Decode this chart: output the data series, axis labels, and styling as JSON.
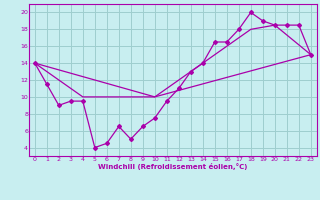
{
  "xlabel": "Windchill (Refroidissement éolien,°C)",
  "xlim": [
    -0.5,
    23.5
  ],
  "ylim": [
    3.0,
    21.0
  ],
  "xticks": [
    0,
    1,
    2,
    3,
    4,
    5,
    6,
    7,
    8,
    9,
    10,
    11,
    12,
    13,
    14,
    15,
    16,
    17,
    18,
    19,
    20,
    21,
    22,
    23
  ],
  "yticks": [
    4,
    6,
    8,
    10,
    12,
    14,
    16,
    18,
    20
  ],
  "background_color": "#c8eef0",
  "line_color": "#aa00aa",
  "grid_color": "#9ecece",
  "series1_x": [
    0,
    1,
    2,
    3,
    4,
    5,
    6,
    7,
    8,
    9,
    10,
    11,
    12,
    13,
    14,
    15,
    16,
    17,
    18,
    19,
    20,
    21,
    22,
    23
  ],
  "series1_y": [
    14,
    11.5,
    9,
    9.5,
    9.5,
    4,
    4.5,
    6.5,
    5,
    6.5,
    7.5,
    9.5,
    11,
    13,
    14,
    16.5,
    16.5,
    18,
    20,
    19,
    18.5,
    18.5,
    18.5,
    15
  ],
  "series2_x": [
    0,
    4,
    10,
    23
  ],
  "series2_y": [
    14,
    10,
    10,
    15
  ],
  "series3_x": [
    0,
    10,
    18,
    20,
    23
  ],
  "series3_y": [
    14,
    10,
    18,
    18.5,
    15
  ]
}
